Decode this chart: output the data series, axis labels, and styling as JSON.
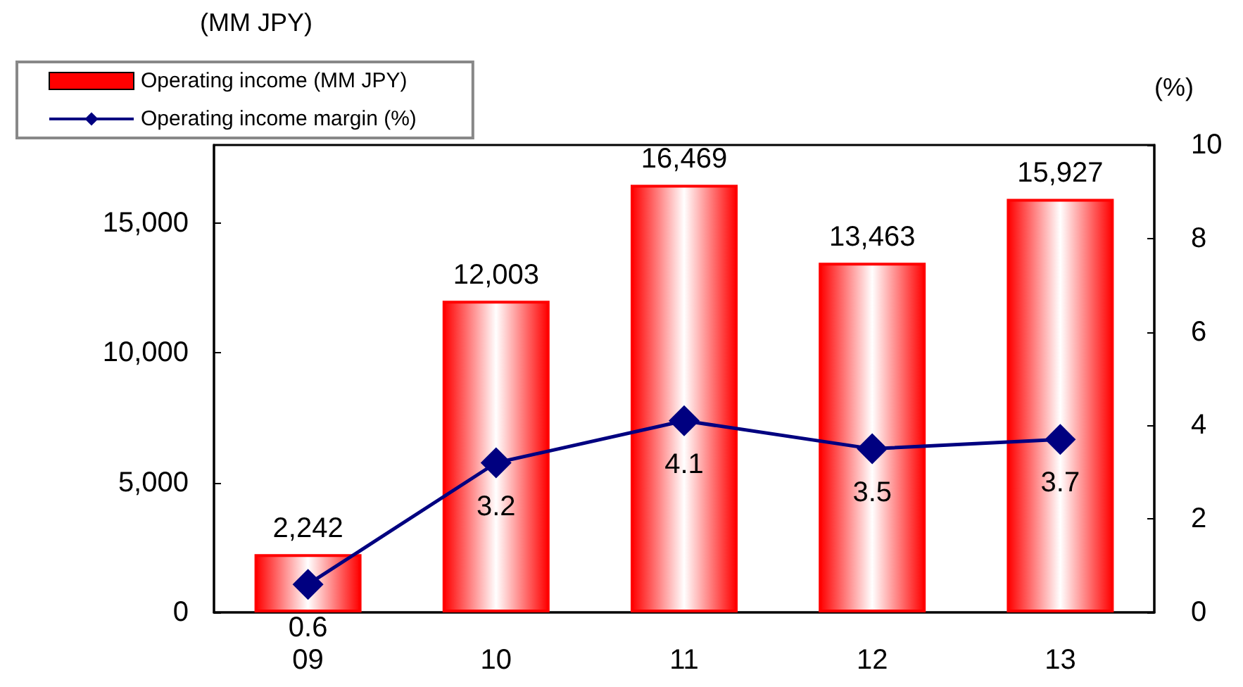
{
  "chart_data": {
    "type": "bar",
    "ylabel": "(MM JPY)",
    "y2label": "(%)",
    "categories": [
      "09",
      "10",
      "11",
      "12",
      "13"
    ],
    "series": [
      {
        "name": "Operating income (MM JPY)",
        "color": "#ff0000",
        "values": [
          2242,
          12003,
          16469,
          13463,
          15927
        ],
        "value_labels": [
          "2,242",
          "12,003",
          "16,469",
          "13,463",
          "15,927"
        ]
      },
      {
        "name": "Operating income margin (%)",
        "type": "line",
        "axis": "y2",
        "color": "#000080",
        "values": [
          0.6,
          3.2,
          4.1,
          3.5,
          3.7
        ]
      }
    ],
    "ylim": [
      0,
      18000
    ],
    "yticks": [
      0,
      {
        "value": 5000,
        "label": "5,000"
      },
      {
        "value": 10000,
        "label": "10,000"
      },
      {
        "value": 15000,
        "label": "15,000"
      }
    ],
    "y2lim": [
      0,
      10
    ],
    "y2ticks": [
      0,
      2,
      4,
      6,
      8,
      10
    ],
    "data_labels": true,
    "legend": "top left",
    "marker": "diamond",
    "grid": false
  }
}
